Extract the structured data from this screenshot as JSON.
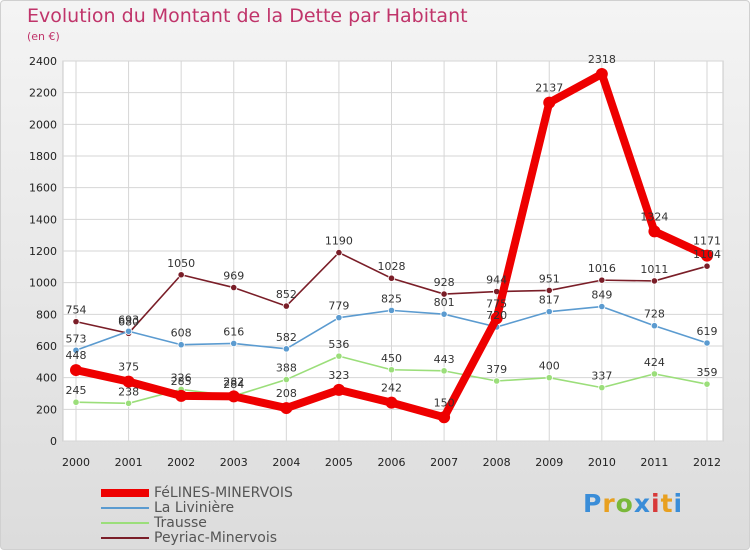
{
  "chart_data": {
    "type": "line",
    "title": "Evolution du Montant de la Dette par Habitant",
    "subtitle": "(en €)",
    "xlabel": "",
    "ylabel": "",
    "ylim": [
      0,
      2400
    ],
    "yticks": [
      0,
      200,
      400,
      600,
      800,
      1000,
      1200,
      1400,
      1600,
      1800,
      2000,
      2200,
      2400
    ],
    "categories": [
      "2000",
      "2001",
      "2002",
      "2003",
      "2004",
      "2005",
      "2006",
      "2007",
      "2008",
      "2009",
      "2010",
      "2011",
      "2012"
    ],
    "grid": true,
    "legend_position": "bottom-left",
    "series": [
      {
        "name": "Peyriac-Minervois",
        "color": "#7a1e28",
        "values": [
          754,
          680,
          1050,
          969,
          852,
          1190,
          1028,
          928,
          944,
          951,
          1016,
          1011,
          1104
        ],
        "labels": [
          "754",
          "680",
          "1050",
          "969",
          "852",
          "1190",
          "1028",
          "928",
          "944",
          "951",
          "1016",
          "1011",
          "1104"
        ]
      },
      {
        "name": "La Livinière",
        "color": "#5b9bd0",
        "values": [
          573,
          693,
          608,
          616,
          582,
          779,
          825,
          801,
          720,
          817,
          849,
          728,
          619
        ],
        "labels": [
          "573",
          "693",
          "608",
          "616",
          "582",
          "779",
          "825",
          "801",
          "720",
          "817",
          "849",
          "728",
          "619"
        ]
      },
      {
        "name": "Trausse",
        "color": "#9bde7a",
        "values": [
          245,
          238,
          326,
          284,
          388,
          536,
          450,
          443,
          379,
          400,
          337,
          424,
          359
        ],
        "labels": [
          "245",
          "238",
          "326",
          "284",
          "388",
          "536",
          "450",
          "443",
          "379",
          "400",
          "337",
          "424",
          "359"
        ]
      },
      {
        "name": "FéLINES-MINERVOIS",
        "color": "#ee0000",
        "values": [
          448,
          375,
          285,
          282,
          208,
          323,
          242,
          150,
          775,
          2137,
          2318,
          1324,
          1171
        ],
        "labels": [
          "448",
          "375",
          "285",
          "282",
          "208",
          "323",
          "242",
          "150",
          "775",
          "2137",
          "2318",
          "1324",
          "1171"
        ]
      }
    ]
  },
  "legend": {
    "items": [
      {
        "label": "FéLINES-MINERVOIS",
        "color": "#ee0000",
        "thickness": 8
      },
      {
        "label": "La Livinière",
        "color": "#5b9bd0",
        "thickness": 2
      },
      {
        "label": "Trausse",
        "color": "#9bde7a",
        "thickness": 2
      },
      {
        "label": "Peyriac-Minervois",
        "color": "#7a1e28",
        "thickness": 2
      }
    ]
  },
  "logo": {
    "text": "Proxiti",
    "letter_colors": [
      "#3a8dd8",
      "#e8a020",
      "#7ab83a",
      "#3a8dd8",
      "#d83a3a",
      "#e8a020",
      "#3a8dd8"
    ]
  }
}
